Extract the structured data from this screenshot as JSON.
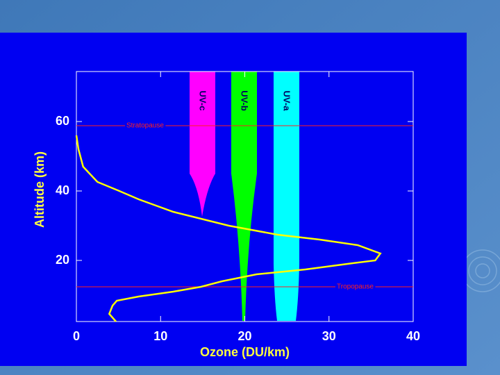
{
  "chart_data": {
    "type": "line",
    "xlabel": "Ozone (DU/km)",
    "ylabel": "Altitude (km)",
    "xlim": [
      0,
      40
    ],
    "ylim": [
      2.4,
      74.4
    ],
    "xticks": [
      0,
      10,
      20,
      30,
      40
    ],
    "yticks": [
      20,
      40,
      60
    ],
    "series": [
      {
        "color": "#ffff00",
        "x": [
          0,
          0.25,
          0.8,
          2.5,
          5.1,
          7.4,
          11.5,
          14.8,
          18.1,
          23.9,
          28.9,
          33.4,
          36.1,
          35.5,
          32.2,
          27.2,
          21.4,
          17.3,
          14.8,
          11.5,
          7.4,
          4.8,
          4.3,
          3.9,
          4.7
        ],
        "values": [
          56,
          52,
          47,
          42.6,
          40,
          37.6,
          34,
          32,
          30,
          27.4,
          26,
          24.4,
          22,
          20,
          19,
          17.4,
          16,
          14,
          12.4,
          11,
          9.6,
          8.4,
          7,
          4.6,
          2.4
        ]
      }
    ],
    "hlines": [
      {
        "label": "Stratopause",
        "value": 58.8,
        "color": "#ff2020"
      },
      {
        "label": "Tropopause",
        "value": 12.4,
        "color": "#ff2020"
      }
    ],
    "bands": [
      {
        "label": "UV-c",
        "color": "#ff00ff"
      },
      {
        "label": "UV-b",
        "color": "#00ff00"
      },
      {
        "label": "UV-a",
        "color": "#00ffff"
      }
    ]
  }
}
